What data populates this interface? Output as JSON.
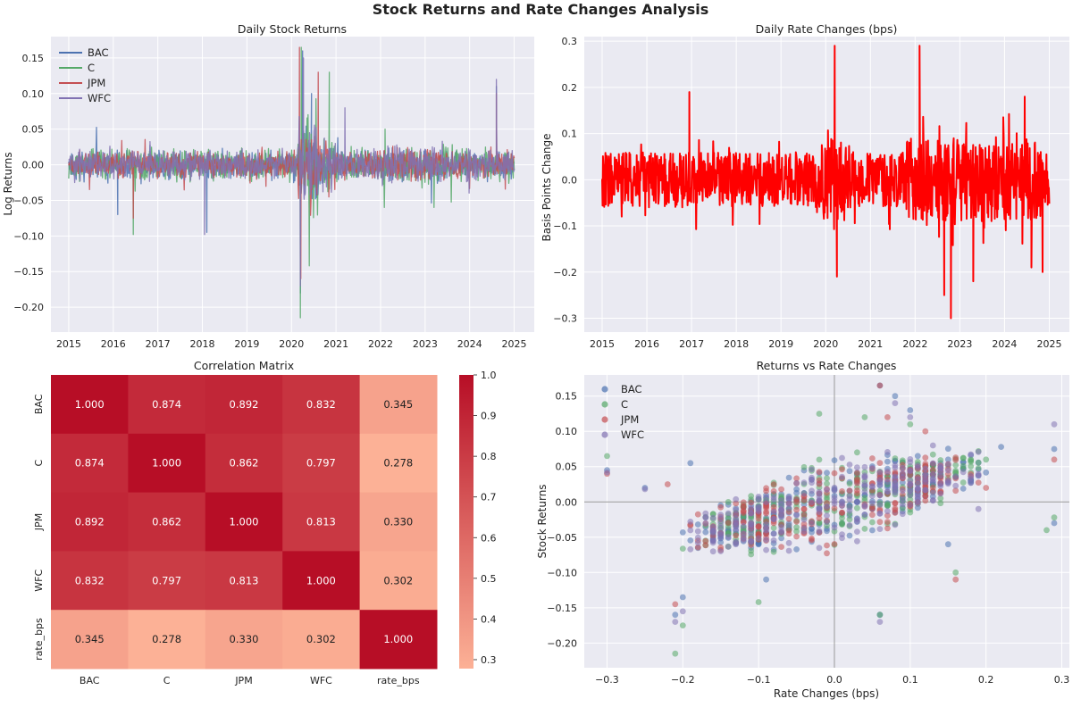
{
  "suptitle": "Stock Returns and Rate Changes Analysis",
  "colors": {
    "BAC": "#4C72B0",
    "C": "#55A868",
    "JPM": "#C44E52",
    "WFC": "#8172B2",
    "rate": "#FF0000",
    "panel_bg": "#EAEAF2",
    "grid": "#FFFFFF"
  },
  "chart_data": [
    {
      "id": "returns",
      "type": "line",
      "title": "Daily Stock Returns",
      "xlabel": "",
      "ylabel": "Log Returns",
      "xlim": [
        2014.6,
        2025.45
      ],
      "ylim": [
        -0.235,
        0.18
      ],
      "xticks": [
        2015,
        2016,
        2017,
        2018,
        2019,
        2020,
        2021,
        2022,
        2023,
        2024,
        2025
      ],
      "xtick_labels": [
        "2015",
        "2016",
        "2017",
        "2018",
        "2019",
        "2020",
        "2021",
        "2022",
        "2023",
        "2024",
        "2025"
      ],
      "yticks": [
        -0.2,
        -0.15,
        -0.1,
        -0.05,
        0,
        0.05,
        0.1,
        0.15
      ],
      "ytick_labels": [
        "−0.20",
        "−0.15",
        "−0.10",
        "−0.05",
        "0.00",
        "0.05",
        "0.10",
        "0.15"
      ],
      "legend_loc": "upper-left",
      "x_range": [
        2015.0,
        2025.0
      ],
      "series": [
        {
          "name": "BAC",
          "base_amp": 0.016,
          "extremes": [
            [
              2016.1,
              -0.07
            ],
            [
              2018.1,
              -0.095
            ],
            [
              2020.2,
              -0.18
            ],
            [
              2020.25,
              0.16
            ],
            [
              2020.45,
              0.1
            ],
            [
              2024.6,
              0.11
            ]
          ]
        },
        {
          "name": "C",
          "base_amp": 0.018,
          "extremes": [
            [
              2016.45,
              -0.098
            ],
            [
              2020.2,
              -0.215
            ],
            [
              2020.22,
              0.165
            ],
            [
              2020.4,
              -0.142
            ],
            [
              2020.85,
              0.13
            ],
            [
              2022.1,
              0.05
            ],
            [
              2023.2,
              -0.06
            ]
          ]
        },
        {
          "name": "JPM",
          "base_amp": 0.015,
          "extremes": [
            [
              2016.45,
              -0.075
            ],
            [
              2020.18,
              0.165
            ],
            [
              2020.21,
              -0.16
            ],
            [
              2020.6,
              0.13
            ],
            [
              2024.6,
              0.1
            ]
          ]
        },
        {
          "name": "WFC",
          "base_amp": 0.016,
          "extremes": [
            [
              2018.05,
              -0.098
            ],
            [
              2020.2,
              -0.17
            ],
            [
              2020.27,
              0.15
            ],
            [
              2021.2,
              0.08
            ],
            [
              2024.6,
              0.12
            ]
          ]
        }
      ]
    },
    {
      "id": "rates",
      "type": "line",
      "title": "Daily Rate Changes (bps)",
      "xlabel": "",
      "ylabel": "Basis Points Change",
      "xlim": [
        2014.6,
        2025.45
      ],
      "ylim": [
        -0.33,
        0.31
      ],
      "xticks": [
        2015,
        2016,
        2017,
        2018,
        2019,
        2020,
        2021,
        2022,
        2023,
        2024,
        2025
      ],
      "xtick_labels": [
        "2015",
        "2016",
        "2017",
        "2018",
        "2019",
        "2020",
        "2021",
        "2022",
        "2023",
        "2024",
        "2025"
      ],
      "yticks": [
        -0.3,
        -0.2,
        -0.1,
        0,
        0.1,
        0.2,
        0.3
      ],
      "ytick_labels": [
        "−0.3",
        "−0.2",
        "−0.1",
        "0.0",
        "0.1",
        "0.2",
        "0.3"
      ],
      "x_range": [
        2015.0,
        2025.0
      ],
      "series": [
        {
          "name": "rate_bps",
          "extremes": [
            [
              2016.95,
              0.19
            ],
            [
              2020.2,
              0.29
            ],
            [
              2020.25,
              -0.21
            ],
            [
              2022.1,
              0.29
            ],
            [
              2022.8,
              -0.3
            ],
            [
              2022.65,
              -0.25
            ],
            [
              2023.3,
              -0.22
            ],
            [
              2024.45,
              0.18
            ],
            [
              2024.6,
              -0.19
            ],
            [
              2024.85,
              -0.2
            ]
          ]
        }
      ]
    },
    {
      "id": "corr",
      "type": "heatmap",
      "title": "Correlation Matrix",
      "labels": [
        "BAC",
        "C",
        "JPM",
        "WFC",
        "rate_bps"
      ],
      "matrix": [
        [
          1.0,
          0.874,
          0.892,
          0.832,
          0.345
        ],
        [
          0.874,
          1.0,
          0.862,
          0.797,
          0.278
        ],
        [
          0.892,
          0.862,
          1.0,
          0.813,
          0.33
        ],
        [
          0.832,
          0.797,
          0.813,
          1.0,
          0.302
        ],
        [
          0.345,
          0.278,
          0.33,
          0.302,
          1.0
        ]
      ],
      "cell_labels": [
        [
          "1.000",
          "0.874",
          "0.892",
          "0.832",
          "0.345"
        ],
        [
          "0.874",
          "1.000",
          "0.862",
          "0.797",
          "0.278"
        ],
        [
          "0.892",
          "0.862",
          "1.000",
          "0.813",
          "0.330"
        ],
        [
          "0.832",
          "0.797",
          "0.813",
          "1.000",
          "0.302"
        ],
        [
          "0.345",
          "0.278",
          "0.330",
          "0.302",
          "1.000"
        ]
      ],
      "colorbar_range": [
        0.278,
        1.0
      ],
      "colorbar_ticks": [
        0.3,
        0.4,
        0.5,
        0.6,
        0.7,
        0.8,
        0.9,
        1.0
      ],
      "colorbar_tick_labels": [
        "0.3",
        "0.4",
        "0.5",
        "0.6",
        "0.7",
        "0.8",
        "0.9",
        "1.0"
      ],
      "colormap": "Reds"
    },
    {
      "id": "scatter",
      "type": "scatter",
      "title": "Returns vs Rate Changes",
      "xlabel": "Rate Changes (bps)",
      "ylabel": "Stock Returns",
      "xlim": [
        -0.33,
        0.31
      ],
      "ylim": [
        -0.235,
        0.18
      ],
      "xticks": [
        -0.3,
        -0.2,
        -0.1,
        0,
        0.1,
        0.2,
        0.3
      ],
      "xtick_labels": [
        "−0.3",
        "−0.2",
        "−0.1",
        "0.0",
        "0.1",
        "0.2",
        "0.3"
      ],
      "yticks": [
        -0.2,
        -0.15,
        -0.1,
        -0.05,
        0,
        0.05,
        0.1,
        0.15
      ],
      "ytick_labels": [
        "−0.20",
        "−0.15",
        "−0.10",
        "−0.05",
        "0.00",
        "0.05",
        "0.10",
        "0.15"
      ],
      "legend_loc": "upper-left",
      "series": [
        {
          "name": "BAC",
          "points": [
            [
              -0.3,
              0.045
            ],
            [
              -0.25,
              0.02
            ],
            [
              -0.21,
              -0.16
            ],
            [
              -0.2,
              -0.135
            ],
            [
              -0.19,
              0.055
            ],
            [
              0.06,
              0.165
            ],
            [
              0.08,
              0.15
            ],
            [
              0.1,
              0.13
            ],
            [
              0.29,
              0.075
            ],
            [
              0.29,
              -0.03
            ],
            [
              0.15,
              -0.06
            ],
            [
              -0.09,
              -0.11
            ],
            [
              0.06,
              -0.16
            ],
            [
              0.22,
              0.078
            ]
          ]
        },
        {
          "name": "C",
          "points": [
            [
              -0.3,
              0.065
            ],
            [
              -0.21,
              -0.215
            ],
            [
              -0.2,
              -0.175
            ],
            [
              -0.02,
              0.125
            ],
            [
              0.06,
              -0.16
            ],
            [
              0.16,
              -0.1
            ],
            [
              0.29,
              -0.022
            ],
            [
              0.28,
              -0.04
            ],
            [
              -0.1,
              -0.142
            ],
            [
              0.04,
              0.12
            ],
            [
              0.18,
              0.06
            ],
            [
              0.1,
              0.11
            ]
          ]
        },
        {
          "name": "JPM",
          "points": [
            [
              -0.3,
              0.04
            ],
            [
              -0.21,
              -0.145
            ],
            [
              0.06,
              0.165
            ],
            [
              0.16,
              -0.11
            ],
            [
              0.29,
              0.06
            ],
            [
              -0.22,
              0.025
            ],
            [
              0.07,
              0.12
            ],
            [
              0.12,
              0.1
            ],
            [
              0.2,
              0.02
            ]
          ]
        },
        {
          "name": "WFC",
          "points": [
            [
              -0.3,
              0.042
            ],
            [
              -0.25,
              0.018
            ],
            [
              -0.21,
              -0.17
            ],
            [
              -0.2,
              -0.155
            ],
            [
              0.06,
              -0.17
            ],
            [
              0.08,
              0.14
            ],
            [
              0.29,
              0.11
            ],
            [
              0.1,
              0.12
            ],
            [
              0.19,
              -0.01
            ],
            [
              0.13,
              0.08
            ]
          ]
        }
      ]
    }
  ]
}
